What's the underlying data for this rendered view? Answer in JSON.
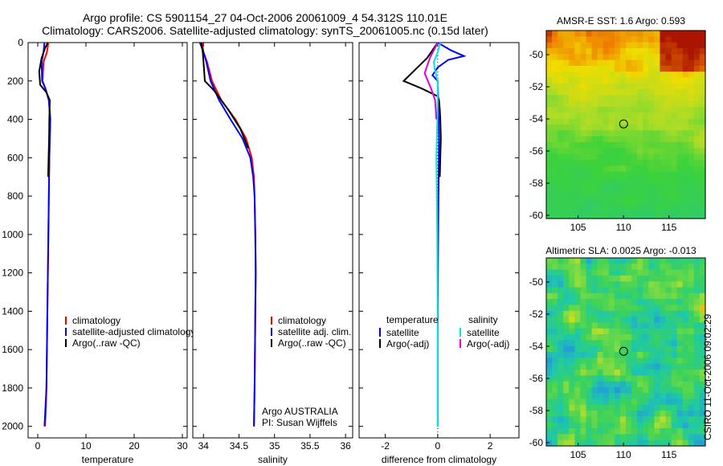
{
  "header": {
    "title_line1": "Argo profile: CS 5901154_27 04-Oct-2006 20061009_4 54.312S 110.01E",
    "title_line2": "Climatology: CARS2006. Satellite-adjusted climatology: synTS_20061005.nc (0.15d later)"
  },
  "colors": {
    "climatology": "#ff0000",
    "satellite": "#0000ff",
    "argo": "#000000",
    "sal_sat": "#00e5e5",
    "sal_argo": "#e000e0"
  },
  "chart_data": [
    {
      "id": "temperature",
      "type": "line",
      "xlabel": "temperature",
      "ylabel": "",
      "xlim": [
        -2,
        31
      ],
      "ylim": [
        2060,
        0
      ],
      "y_reversed": true,
      "xticks": [
        0,
        10,
        20,
        30
      ],
      "xtick_labels": [
        "0",
        "10",
        "20",
        "30"
      ],
      "yticks": [
        0,
        200,
        400,
        600,
        800,
        1000,
        1200,
        1400,
        1600,
        1800,
        2000
      ],
      "ytick_labels": [
        "0",
        "200",
        "400",
        "600",
        "800",
        "1000",
        "1200",
        "1400",
        "1600",
        "1800",
        "2000"
      ],
      "legend": {
        "position": "middle-right",
        "labels": [
          "climatology",
          "satellite-adjusted climatology",
          "Argo(..raw -QC)"
        ]
      },
      "series": [
        {
          "name": "climatology",
          "color": "#ff0000",
          "x": [
            2.2,
            1.9,
            1.2,
            1.0,
            1.6,
            2.3,
            2.6,
            2.5,
            2.4,
            2.3,
            2.2,
            2.1,
            2.0,
            1.9,
            1.8,
            1.7,
            1.5
          ],
          "y": [
            0,
            50,
            100,
            200,
            240,
            300,
            400,
            500,
            600,
            800,
            1000,
            1200,
            1400,
            1600,
            1800,
            1900,
            2000
          ]
        },
        {
          "name": "satellite-adjusted climatology",
          "color": "#0000ff",
          "x": [
            1.4,
            1.2,
            0.8,
            0.9,
            1.6,
            2.3,
            2.6,
            2.5,
            2.4,
            2.3,
            2.2,
            2.1,
            2.0,
            1.9,
            1.8,
            1.6,
            1.4
          ],
          "y": [
            0,
            50,
            100,
            200,
            240,
            300,
            400,
            500,
            600,
            800,
            1000,
            1200,
            1400,
            1600,
            1800,
            1900,
            2000
          ]
        },
        {
          "name": "Argo(..raw -QC)",
          "color": "#000000",
          "x": [
            2.1,
            1.5,
            0.8,
            0.3,
            0.5,
            1.8,
            2.5,
            2.4,
            2.35,
            2.25,
            2.15
          ],
          "y": [
            0,
            30,
            80,
            150,
            220,
            260,
            300,
            400,
            500,
            600,
            700
          ]
        }
      ]
    },
    {
      "id": "salinity",
      "type": "line",
      "xlabel": "salinity",
      "ylabel": "",
      "xlim": [
        33.85,
        36.1
      ],
      "ylim": [
        2060,
        0
      ],
      "y_reversed": true,
      "xticks": [
        34,
        34.5,
        35,
        35.5,
        36
      ],
      "xtick_labels": [
        "34",
        "34.5",
        "35",
        "35.5",
        "36"
      ],
      "legend": {
        "position": "middle-right",
        "labels": [
          "climatology",
          "satellite adj. clim.",
          "Argo(..raw -QC)"
        ]
      },
      "annotations": [
        "Argo AUSTRALIA",
        "PI: Susan Wijffels"
      ],
      "series": [
        {
          "name": "climatology",
          "color": "#ff0000",
          "x": [
            33.98,
            34.0,
            34.05,
            34.12,
            34.25,
            34.45,
            34.6,
            34.68,
            34.71,
            34.72,
            34.73,
            34.735,
            34.73,
            34.725,
            34.72,
            34.715,
            34.71
          ],
          "y": [
            0,
            50,
            100,
            200,
            300,
            400,
            500,
            600,
            700,
            800,
            1000,
            1200,
            1400,
            1600,
            1800,
            1900,
            2000
          ]
        },
        {
          "name": "satellite adj. clim.",
          "color": "#0000ff",
          "x": [
            33.95,
            34.0,
            34.04,
            34.1,
            34.22,
            34.38,
            34.55,
            34.66,
            34.7,
            34.72,
            34.73,
            34.735,
            34.73,
            34.725,
            34.72,
            34.715,
            34.71
          ],
          "y": [
            0,
            50,
            100,
            200,
            300,
            400,
            500,
            600,
            700,
            800,
            1000,
            1200,
            1400,
            1600,
            1800,
            1900,
            2000
          ]
        },
        {
          "name": "Argo(..raw -QC)",
          "color": "#000000",
          "x": [
            33.97,
            33.99,
            34.0,
            34.02,
            34.15,
            34.35,
            34.52,
            34.63
          ],
          "y": [
            0,
            50,
            100,
            200,
            250,
            350,
            450,
            550
          ]
        }
      ]
    },
    {
      "id": "difference",
      "type": "line",
      "xlabel": "difference from climatology",
      "ylabel": "",
      "xlim": [
        -3,
        3.1
      ],
      "ylim": [
        2060,
        0
      ],
      "y_reversed": true,
      "xticks": [
        -2,
        0,
        2
      ],
      "xtick_labels": [
        "-2",
        "0",
        "2"
      ],
      "legend": {
        "position": "middle",
        "temperature_title": "temperature",
        "salinity_title": "salinity",
        "labels": [
          "satellite",
          "Argo(-adj)",
          "satellite",
          "Argo(-adj)"
        ]
      },
      "series": [
        {
          "name": "temperature satellite",
          "color": "#0000ff",
          "x": [
            0.0,
            0.5,
            1.0,
            0.4,
            0.0,
            -0.2,
            0.0,
            0.02,
            0.05,
            0.03,
            0.01,
            0.0,
            0.0
          ],
          "y": [
            0,
            40,
            70,
            90,
            130,
            170,
            200,
            300,
            500,
            800,
            1200,
            1600,
            2000
          ]
        },
        {
          "name": "temperature Argo(-adj)",
          "color": "#000000",
          "x": [
            0.0,
            -0.4,
            -1.3,
            -0.6,
            0.0,
            0.05,
            0.08,
            0.1,
            0.12,
            0.1,
            0.08
          ],
          "y": [
            0,
            80,
            200,
            240,
            280,
            300,
            350,
            400,
            500,
            600,
            700
          ]
        },
        {
          "name": "salinity satellite",
          "color": "#00e5e5",
          "x": [
            0.1,
            0.0,
            -0.15,
            -0.1,
            0.0,
            0.0,
            -0.05,
            -0.02,
            0.0,
            0.0
          ],
          "y": [
            0,
            50,
            100,
            150,
            200,
            300,
            600,
            1000,
            1500,
            2000
          ]
        },
        {
          "name": "salinity Argo(-adj)",
          "color": "#e000e0",
          "x": [
            0.0,
            -0.3,
            -0.5,
            -0.25,
            -0.1,
            -0.05
          ],
          "y": [
            0,
            80,
            160,
            240,
            300,
            400
          ]
        }
      ]
    },
    {
      "id": "sst_map",
      "type": "heatmap",
      "title": "AMSR-E SST: 1.6 Argo: 0.593",
      "xlim": [
        101.5,
        119
      ],
      "ylim": [
        -60.2,
        -48.5
      ],
      "xticks": [
        105,
        110,
        115
      ],
      "yticks": [
        -50,
        -52,
        -54,
        -56,
        -58,
        -60
      ],
      "xtick_labels": [
        "105",
        "110",
        "115"
      ],
      "ytick_labels": [
        "-50",
        "-52",
        "-54",
        "-56",
        "-58",
        "-60"
      ],
      "marker": {
        "lon": 110.01,
        "lat": -54.312
      }
    },
    {
      "id": "sla_map",
      "type": "heatmap",
      "title": "Altimetric SLA: 0.0025 Argo: -0.013",
      "xlim": [
        101.5,
        119
      ],
      "ylim": [
        -60.2,
        -48.5
      ],
      "xticks": [
        105,
        110,
        115
      ],
      "yticks": [
        -50,
        -52,
        -54,
        -56,
        -58,
        -60
      ],
      "xtick_labels": [
        "105",
        "110",
        "115"
      ],
      "ytick_labels": [
        "-50",
        "-52",
        "-54",
        "-56",
        "-58",
        "-60"
      ],
      "marker": {
        "lon": 110.01,
        "lat": -54.312
      }
    }
  ],
  "footer": {
    "signature": "CSIRO 11-Oct-2006 09:02:29"
  }
}
